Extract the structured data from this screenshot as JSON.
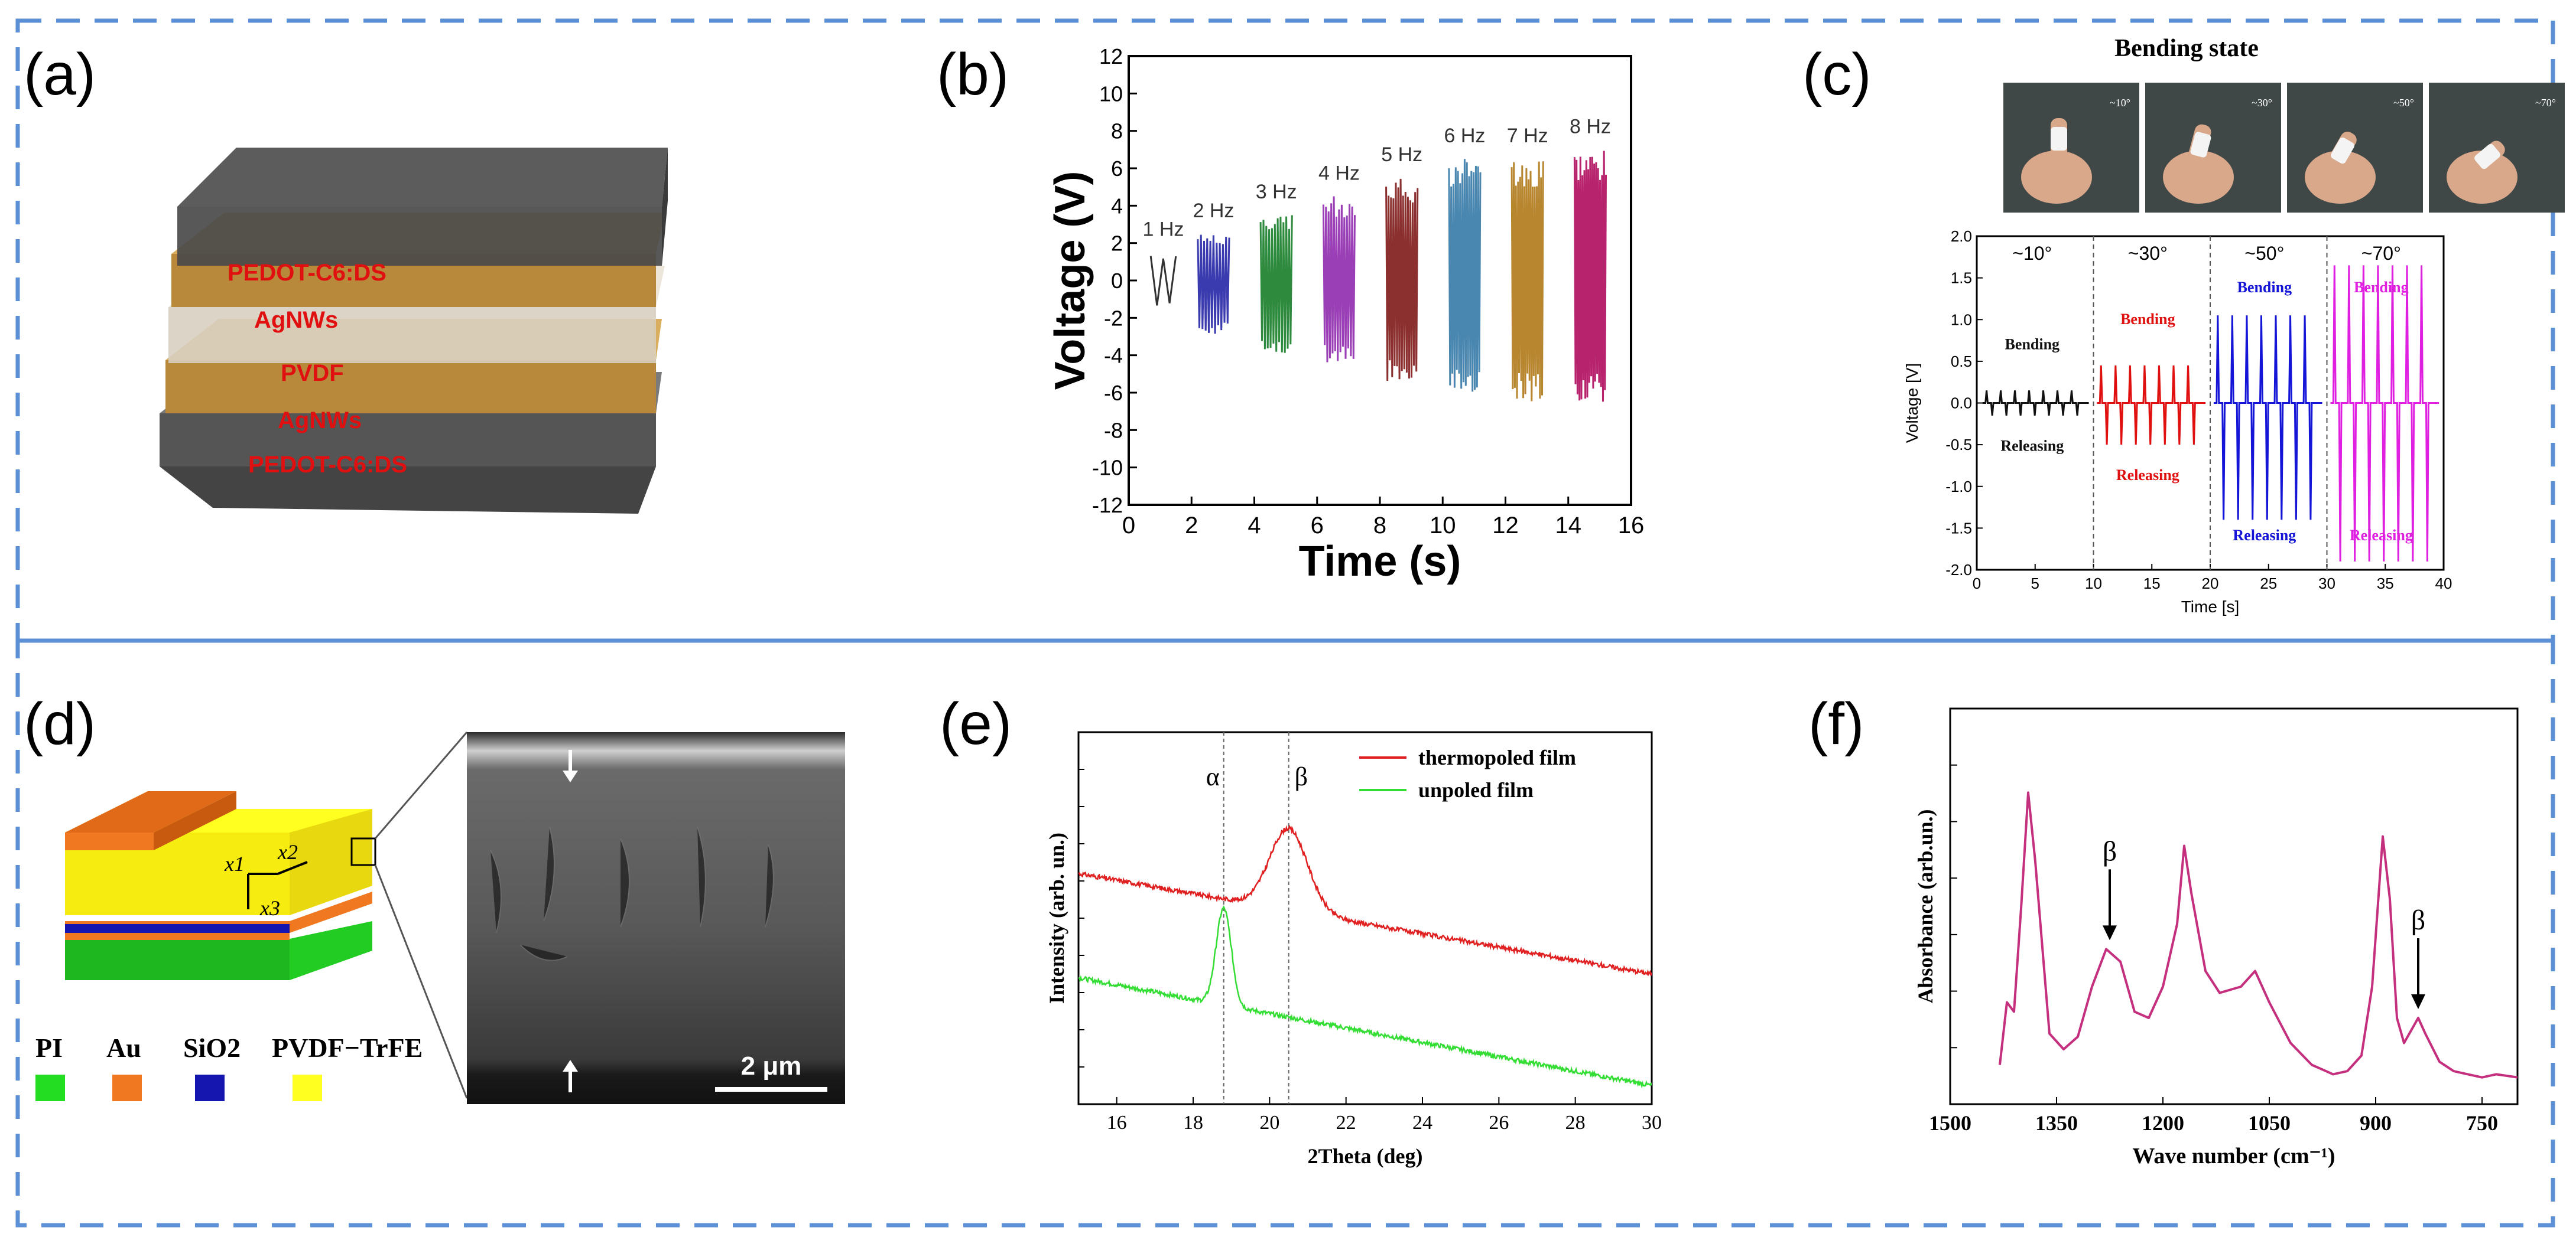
{
  "panels": {
    "a": "(a)",
    "b": "(b)",
    "c": "(c)",
    "d": "(d)",
    "e": "(e)",
    "f": "(f)"
  },
  "colors": {
    "frame": "#5b8fd6",
    "pedot": "#5a5a5a",
    "agnw": "#c8963f",
    "pvdf": "#d8cfc0",
    "label_red": "#e01010"
  },
  "panel_a": {
    "layers": [
      "PEDOT-C6:DS",
      "AgNWs",
      "PVDF",
      "AgNWs",
      "PEDOT-C6:DS"
    ]
  },
  "panel_c_photos": {
    "title": "Bending state",
    "angles": [
      "~10°",
      "~30°",
      "~50°",
      "~70°"
    ]
  },
  "panel_d": {
    "legend": [
      {
        "label": "PI",
        "color": "#22dd22"
      },
      {
        "label": "Au",
        "color": "#f07820"
      },
      {
        "label": "SiO2",
        "color": "#1515b0"
      },
      {
        "label": "PVDF−TrFE",
        "color": "#ffff20"
      }
    ],
    "axes": [
      "x1",
      "x2",
      "x3"
    ],
    "scalebar": "2 μm"
  },
  "chart_data": [
    {
      "panel": "b",
      "type": "line",
      "title": "",
      "xlabel": "Time (s)",
      "ylabel": "Voltage (V)",
      "xlim": [
        0,
        16
      ],
      "ylim": [
        -12,
        12
      ],
      "xticks": [
        0,
        2,
        4,
        6,
        8,
        10,
        12,
        14,
        16
      ],
      "yticks": [
        -12,
        -10,
        -8,
        -6,
        -4,
        -2,
        0,
        2,
        4,
        6,
        8,
        10,
        12
      ],
      "series": [
        {
          "name": "1 Hz",
          "color": "#333333",
          "t_start": 0.7,
          "t_end": 1.5,
          "vmax": 1.5,
          "vmin": -1.5
        },
        {
          "name": "2 Hz",
          "color": "#3b3bb0",
          "t_start": 2.2,
          "t_end": 3.2,
          "vmax": 2.5,
          "vmin": -3.0
        },
        {
          "name": "3 Hz",
          "color": "#2e8b3e",
          "t_start": 4.2,
          "t_end": 5.2,
          "vmax": 3.5,
          "vmin": -4.0
        },
        {
          "name": "4 Hz",
          "color": "#9a3fb5",
          "t_start": 6.2,
          "t_end": 7.2,
          "vmax": 4.5,
          "vmin": -4.5
        },
        {
          "name": "5 Hz",
          "color": "#8b2f2f",
          "t_start": 8.2,
          "t_end": 9.2,
          "vmax": 5.5,
          "vmin": -5.5
        },
        {
          "name": "6 Hz",
          "color": "#4a87b0",
          "t_start": 10.2,
          "t_end": 11.2,
          "vmax": 6.5,
          "vmin": -6.0
        },
        {
          "name": "7 Hz",
          "color": "#b8862e",
          "t_start": 12.2,
          "t_end": 13.2,
          "vmax": 6.5,
          "vmin": -6.5
        },
        {
          "name": "8 Hz",
          "color": "#b8236e",
          "t_start": 14.2,
          "t_end": 15.2,
          "vmax": 7.0,
          "vmin": -6.5
        }
      ]
    },
    {
      "panel": "c",
      "type": "line",
      "title": "",
      "xlabel": "Time [s]",
      "ylabel": "Voltage [V]",
      "xlim": [
        0,
        40
      ],
      "ylim": [
        -2.0,
        2.0
      ],
      "xticks": [
        0,
        5,
        10,
        15,
        20,
        25,
        30,
        35,
        40
      ],
      "yticks": [
        -2.0,
        -1.5,
        -1.0,
        -0.5,
        0.0,
        0.5,
        1.0,
        1.5,
        2.0
      ],
      "dividers": [
        10,
        20,
        30
      ],
      "segments": [
        {
          "angle": "~10°",
          "color": "#111111",
          "t_start": 0.5,
          "t_end": 9,
          "peak": 0.15,
          "trough": -0.15,
          "bending_label": "Bending",
          "releasing_label": "Releasing"
        },
        {
          "angle": "~30°",
          "color": "#e01010",
          "t_start": 10.3,
          "t_end": 19,
          "peak": 0.45,
          "trough": -0.5,
          "bending_label": "Bending",
          "releasing_label": "Releasing"
        },
        {
          "angle": "~50°",
          "color": "#1515d8",
          "t_start": 20.3,
          "t_end": 29,
          "peak": 1.05,
          "trough": -1.4,
          "bending_label": "Bending",
          "releasing_label": "Releasing"
        },
        {
          "angle": "~70°",
          "color": "#e020e0",
          "t_start": 30.3,
          "t_end": 39,
          "peak": 1.65,
          "trough": -1.9,
          "bending_label": "Bending",
          "releasing_label": "Releasing"
        }
      ]
    },
    {
      "panel": "e",
      "type": "line",
      "title": "",
      "xlabel": "2Theta (deg)",
      "ylabel": "Intensity (arb. un.)",
      "xlim": [
        15,
        30
      ],
      "xticks": [
        16,
        18,
        20,
        22,
        24,
        26,
        28,
        30
      ],
      "markers": [
        {
          "label": "α",
          "x": 18.8
        },
        {
          "label": "β",
          "x": 20.5
        }
      ],
      "series": [
        {
          "name": "thermopoled film",
          "color": "#e02020",
          "baseline_start": 0.62,
          "baseline_end": 0.35,
          "peak_x": 20.5,
          "peak_height": 0.22,
          "peak_width": 0.7
        },
        {
          "name": "unpoled film",
          "color": "#33dd33",
          "baseline_start": 0.34,
          "baseline_end": 0.05,
          "peak_x": 18.8,
          "peak_height": 0.26,
          "peak_width": 0.28
        }
      ]
    },
    {
      "panel": "f",
      "type": "line",
      "title": "",
      "xlabel": "Wave number (cm⁻¹)",
      "ylabel": "Absorbance (arb.un.)",
      "xlim": [
        1500,
        700
      ],
      "xticks": [
        1500,
        1350,
        1200,
        1050,
        900,
        750
      ],
      "markers": [
        {
          "label": "β",
          "x": 1275
        },
        {
          "label": "β",
          "x": 840
        }
      ],
      "series": [
        {
          "name": "absorbance",
          "color": "#c42f7e",
          "points": [
            [
              1500,
              null
            ],
            [
              1430,
              0.05
            ],
            [
              1420,
              0.25
            ],
            [
              1410,
              0.22
            ],
            [
              1400,
              0.55
            ],
            [
              1390,
              0.92
            ],
            [
              1380,
              0.7
            ],
            [
              1360,
              0.15
            ],
            [
              1340,
              0.1
            ],
            [
              1320,
              0.14
            ],
            [
              1300,
              0.3
            ],
            [
              1280,
              0.42
            ],
            [
              1260,
              0.38
            ],
            [
              1240,
              0.22
            ],
            [
              1220,
              0.2
            ],
            [
              1200,
              0.3
            ],
            [
              1180,
              0.5
            ],
            [
              1170,
              0.75
            ],
            [
              1160,
              0.6
            ],
            [
              1140,
              0.35
            ],
            [
              1120,
              0.28
            ],
            [
              1090,
              0.3
            ],
            [
              1070,
              0.35
            ],
            [
              1050,
              0.25
            ],
            [
              1020,
              0.12
            ],
            [
              990,
              0.05
            ],
            [
              960,
              0.02
            ],
            [
              940,
              0.03
            ],
            [
              920,
              0.08
            ],
            [
              905,
              0.3
            ],
            [
              890,
              0.78
            ],
            [
              880,
              0.58
            ],
            [
              870,
              0.2
            ],
            [
              860,
              0.12
            ],
            [
              840,
              0.2
            ],
            [
              830,
              0.15
            ],
            [
              810,
              0.06
            ],
            [
              790,
              0.03
            ],
            [
              770,
              0.02
            ],
            [
              750,
              0.01
            ],
            [
              730,
              0.02
            ],
            [
              700,
              0.01
            ]
          ]
        }
      ]
    }
  ]
}
